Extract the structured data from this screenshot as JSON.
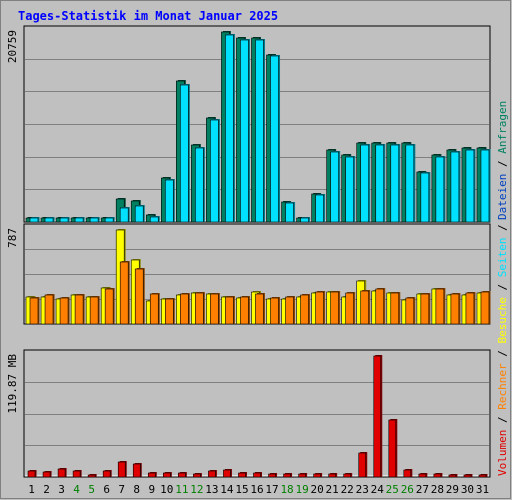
{
  "chart_data": {
    "type": "bar",
    "title": "Tages-Statistik im Monat Januar 2025",
    "days": [
      "1",
      "2",
      "3",
      "4",
      "5",
      "6",
      "7",
      "8",
      "9",
      "10",
      "11",
      "12",
      "13",
      "14",
      "15",
      "16",
      "17",
      "18",
      "19",
      "20",
      "21",
      "22",
      "23",
      "24",
      "25",
      "26",
      "27",
      "28",
      "29",
      "30",
      "31"
    ],
    "weekend_days": [
      4,
      5,
      11,
      12,
      18,
      19,
      25,
      26
    ],
    "colors": {
      "anfragen": "#008060",
      "dateien": "#0040c0",
      "seiten": "#00e0ff",
      "besuche": "#ffff00",
      "rechner": "#ff8000",
      "volumen": "#e00000",
      "title": "#0000ff",
      "weekend": "#008000",
      "weekday": "#000000"
    },
    "panels": {
      "top": {
        "ymax_label": "20759",
        "ymax": 20759,
        "series": [
          {
            "key": "anfragen",
            "name": "Anfragen",
            "values": [
              480,
              480,
              480,
              480,
              480,
              480,
              2500,
              2300,
              750,
              4800,
              15400,
              8400,
              11400,
              20759,
              20100,
              20100,
              18300,
              2200,
              480,
              3100,
              7900,
              7300,
              8600,
              8600,
              8600,
              8600,
              5500,
              7300,
              7900,
              8100,
              8100
            ]
          },
          {
            "key": "seiten",
            "name": "Seiten",
            "values": [
              420,
              420,
              420,
              420,
              420,
              420,
              1500,
              1800,
              500,
              4600,
              15000,
              8100,
              11100,
              20400,
              19900,
              19900,
              18100,
              2100,
              400,
              2900,
              7700,
              7100,
              8400,
              8400,
              8400,
              8400,
              5300,
              7100,
              7700,
              7900,
              7900
            ]
          }
        ],
        "label": {
          "anfragen": "Anfragen",
          "dateien": "Dateien",
          "seiten": "Seiten"
        }
      },
      "middle": {
        "ymax_label": "787",
        "ymax": 787,
        "series": [
          {
            "key": "besuche",
            "name": "Besuche",
            "values": [
              230,
              230,
              210,
              240,
              230,
              300,
              787,
              540,
              190,
              210,
              240,
              260,
              250,
              230,
              220,
              270,
              210,
              210,
              230,
              260,
              270,
              230,
              360,
              280,
              260,
              200,
              250,
              290,
              240,
              240,
              260
            ]
          },
          {
            "key": "rechner",
            "name": "Rechner",
            "values": [
              220,
              240,
              220,
              240,
              230,
              290,
              520,
              460,
              250,
              210,
              250,
              260,
              255,
              230,
              230,
              250,
              220,
              230,
              240,
              270,
              270,
              260,
              280,
              290,
              260,
              220,
              250,
              290,
              250,
              260,
              270
            ]
          }
        ],
        "label": {
          "besuche": "Besuche",
          "rechner": "Rechner"
        }
      },
      "bottom": {
        "ymax_label": "119.87 MB",
        "ymax": 119.87,
        "series": [
          {
            "key": "volumen",
            "name": "Volumen",
            "values": [
              6,
              4.5,
              8,
              6,
              2,
              6,
              14.5,
              12.5,
              4,
              3.8,
              3.5,
              3.4,
              5.5,
              7,
              3.8,
              3.6,
              2.5,
              2.5,
              2.8,
              3.4,
              3.4,
              2.8,
              23.5,
              119.87,
              56,
              7,
              2.5,
              2.5,
              2.4,
              2.4,
              2.4
            ]
          }
        ],
        "label": {
          "volumen": "Volumen"
        }
      }
    }
  }
}
